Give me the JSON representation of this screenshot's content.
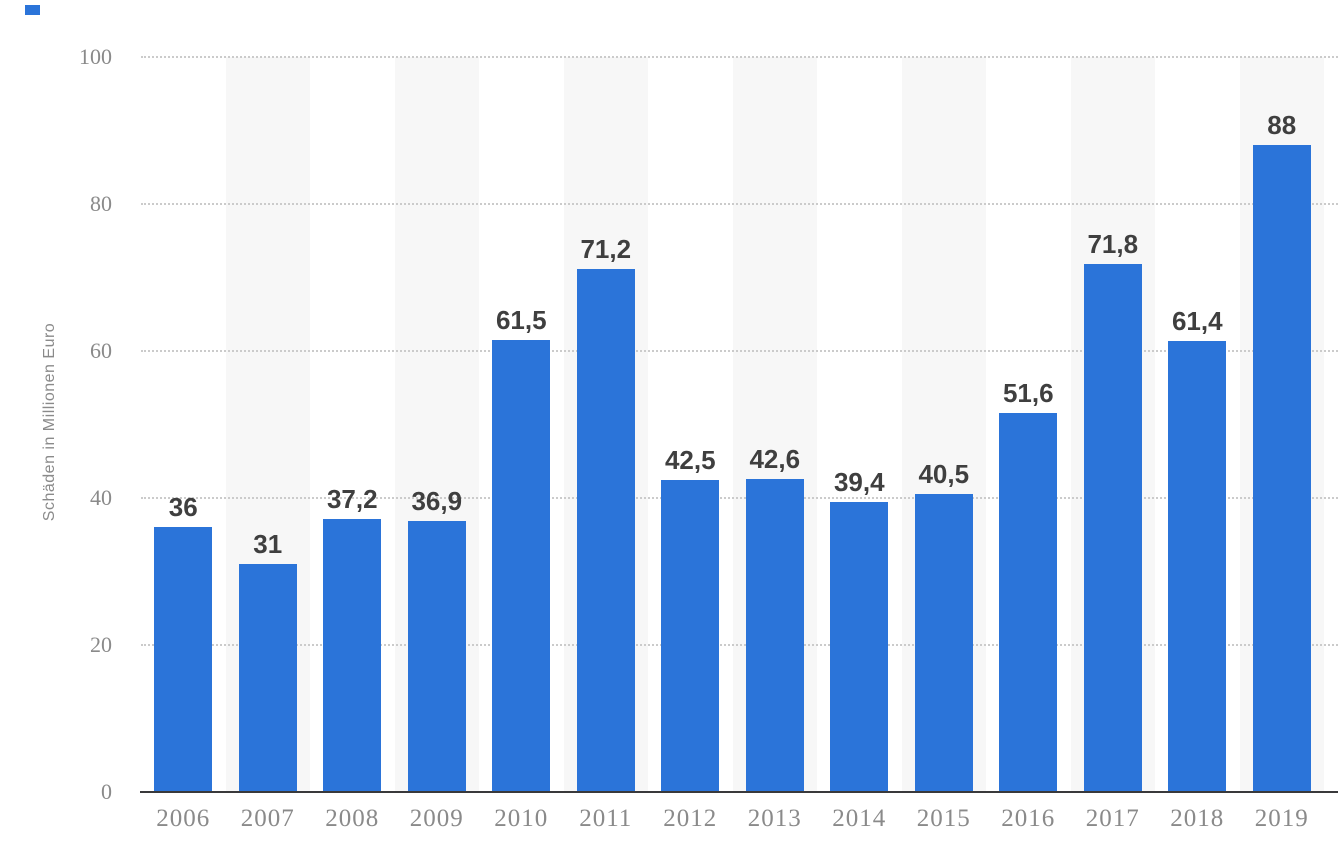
{
  "chart_data": {
    "type": "bar",
    "title": "",
    "ylabel": "Schäden in Millionen Euro",
    "xlabel": "",
    "categories": [
      "2006",
      "2007",
      "2008",
      "2009",
      "2010",
      "2011",
      "2012",
      "2013",
      "2014",
      "2015",
      "2016",
      "2017",
      "2018",
      "2019"
    ],
    "values": [
      36,
      31,
      37.2,
      36.9,
      61.5,
      71.2,
      42.5,
      42.6,
      39.4,
      40.5,
      51.6,
      71.8,
      61.4,
      88
    ],
    "value_labels": [
      "36",
      "31",
      "37,2",
      "36,9",
      "61,5",
      "71,2",
      "42,5",
      "42,6",
      "39,4",
      "40,5",
      "51,6",
      "71,8",
      "61,4",
      "88"
    ],
    "decimal_separator": ",",
    "ylim": [
      0,
      100
    ],
    "yticks": [
      0,
      20,
      40,
      60,
      80,
      100
    ],
    "ytick_labels": [
      "0",
      "20",
      "40",
      "60",
      "80",
      "100"
    ],
    "grid": "horizontal-dotted",
    "legend": "none",
    "plot_background": "alternating vertical bands starting white at 2006",
    "colors": {
      "bar": "#2b74d9",
      "band": "#f7f7f7",
      "grid": "#cbcbcb",
      "axis_line": "#39393b",
      "tick_label": "#8a8a8a",
      "value_label": "#3f3f3f",
      "y_title": "#8a8a8a",
      "background": "#ffffff",
      "corner_accent": "#2b74d9"
    }
  }
}
